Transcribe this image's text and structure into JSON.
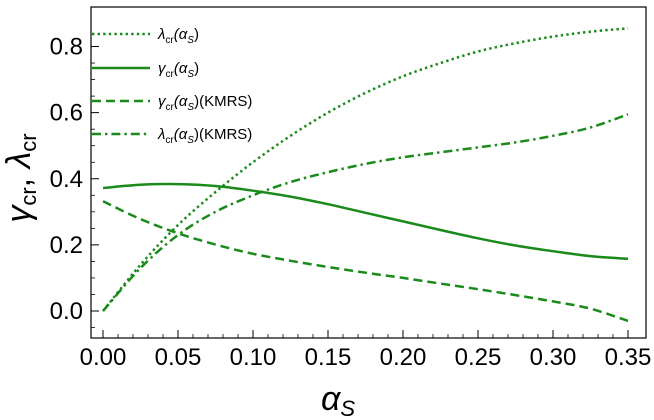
{
  "chart_data": {
    "type": "line",
    "xlabel_main": "α",
    "xlabel_sub": "S",
    "ylabel_parts": [
      "γ",
      "cr",
      ", ",
      "λ",
      "cr"
    ],
    "xlim": [
      0,
      0.35
    ],
    "ylim": [
      0,
      0.85
    ],
    "x_ticks": [
      0.0,
      0.05,
      0.1,
      0.15,
      0.2,
      0.25,
      0.3,
      0.35
    ],
    "x_tick_labels": [
      "0.00",
      "0.05",
      "0.10",
      "0.15",
      "0.20",
      "0.25",
      "0.30",
      "0.35"
    ],
    "y_ticks": [
      0.0,
      0.2,
      0.4,
      0.6,
      0.8
    ],
    "y_tick_labels": [
      "0.0",
      "0.2",
      "0.4",
      "0.6",
      "0.8"
    ],
    "grid": false,
    "legend_placement": "top-left",
    "line_color": "#1a8a1a",
    "x": [
      0.0,
      0.025,
      0.05,
      0.075,
      0.1,
      0.125,
      0.15,
      0.175,
      0.2,
      0.225,
      0.25,
      0.275,
      0.3,
      0.325,
      0.35
    ],
    "series": [
      {
        "legend": {
          "main": "λ",
          "sub": "cr",
          "arg": "(α",
          "arg_sub": "S",
          "close": ")",
          "suffix": ""
        },
        "style": "dotted",
        "values": [
          0.0,
          0.14,
          0.26,
          0.36,
          0.45,
          0.53,
          0.6,
          0.66,
          0.71,
          0.75,
          0.785,
          0.81,
          0.83,
          0.845,
          0.855
        ]
      },
      {
        "legend": {
          "main": "γ",
          "sub": "cr",
          "arg": "(α",
          "arg_sub": "S",
          "close": ")",
          "suffix": ""
        },
        "style": "solid",
        "values": [
          0.372,
          0.382,
          0.384,
          0.378,
          0.364,
          0.346,
          0.323,
          0.297,
          0.271,
          0.245,
          0.22,
          0.198,
          0.181,
          0.166,
          0.158
        ]
      },
      {
        "legend": {
          "main": "γ",
          "sub": "cr",
          "arg": "(α",
          "arg_sub": "S",
          "close": ")",
          "suffix": "(KMRS)"
        },
        "style": "dashed",
        "values": [
          0.332,
          0.278,
          0.235,
          0.201,
          0.173,
          0.152,
          0.133,
          0.116,
          0.1,
          0.083,
          0.066,
          0.048,
          0.029,
          0.007,
          -0.03
        ]
      },
      {
        "legend": {
          "main": "λ",
          "sub": "cr",
          "arg": "(α",
          "arg_sub": "S",
          "close": ")",
          "suffix": "(KMRS)"
        },
        "style": "dashdot",
        "values": [
          0.0,
          0.13,
          0.23,
          0.3,
          0.35,
          0.39,
          0.42,
          0.445,
          0.465,
          0.48,
          0.495,
          0.51,
          0.53,
          0.555,
          0.595
        ]
      }
    ]
  }
}
